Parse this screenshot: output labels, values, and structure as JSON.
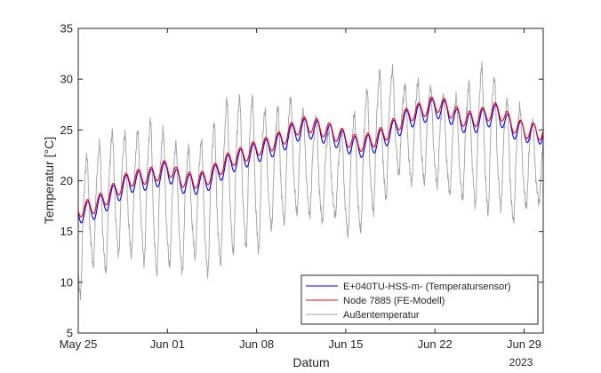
{
  "chart_data": {
    "type": "line",
    "title": "",
    "xlabel": "Datum",
    "ylabel": "Temperatur [°C]",
    "year_label": "2023",
    "xlim": [
      "2023-05-25",
      "2023-06-30T12:00"
    ],
    "ylim": [
      5,
      35
    ],
    "yticks": [
      5,
      10,
      15,
      20,
      25,
      30,
      35
    ],
    "xticks": [
      {
        "date": "2023-05-25",
        "label": "May 25"
      },
      {
        "date": "2023-06-01",
        "label": "Jun 01"
      },
      {
        "date": "2023-06-08",
        "label": "Jun 08"
      },
      {
        "date": "2023-06-15",
        "label": "Jun 15"
      },
      {
        "date": "2023-06-22",
        "label": "Jun 22"
      },
      {
        "date": "2023-06-29",
        "label": "Jun 29"
      }
    ],
    "grid": false,
    "legend_position": "bottom-right",
    "series": [
      {
        "name": "E+040TU-HSS-m- (Temperatursensor)",
        "color": "#0000ff",
        "daily_base": [
          16.8,
          17.0,
          17.8,
          18.8,
          19.8,
          20.0,
          20.2,
          21.0,
          19.8,
          19.6,
          19.8,
          20.8,
          21.8,
          22.2,
          22.8,
          23.2,
          23.8,
          24.8,
          25.2,
          24.8,
          24.4,
          23.8,
          23.2,
          23.6,
          24.2,
          25.2,
          26.2,
          26.6,
          27.2,
          26.8,
          25.8,
          25.6,
          26.2,
          26.6,
          25.2,
          24.8,
          24.6
        ],
        "daily_amplitude": 1.0
      },
      {
        "name": "Node 7885 (FE-Modell)",
        "color": "#ff0000",
        "daily_base": [
          17.2,
          17.4,
          18.2,
          19.2,
          20.2,
          20.4,
          20.6,
          21.4,
          20.2,
          20.0,
          20.2,
          21.2,
          22.2,
          22.6,
          23.2,
          23.6,
          24.2,
          25.2,
          25.6,
          25.2,
          24.8,
          24.2,
          23.6,
          24.0,
          24.6,
          25.6,
          26.6,
          27.0,
          27.6,
          27.2,
          26.2,
          26.0,
          26.6,
          27.0,
          25.6,
          25.0,
          24.8
        ],
        "daily_amplitude": 0.8
      },
      {
        "name": "Außentemperatur",
        "color": "#a0a0a0",
        "daily_min": [
          8.5,
          12.0,
          11.0,
          13.0,
          13.0,
          12.5,
          11.0,
          12.0,
          11.0,
          13.0,
          11.0,
          12.0,
          13.0,
          14.0,
          13.0,
          15.5,
          16.0,
          17.0,
          17.0,
          16.0,
          17.0,
          15.0,
          15.0,
          17.0,
          18.0,
          21.0,
          20.0,
          20.0,
          20.0,
          19.0,
          18.5,
          18.0,
          17.0,
          18.0,
          16.0,
          17.5,
          18.0
        ],
        "daily_max": [
          20.5,
          23.0,
          23.5,
          25.0,
          24.0,
          25.0,
          26.0,
          24.0,
          23.0,
          23.0,
          24.0,
          26.0,
          28.5,
          27.5,
          28.0,
          26.0,
          27.5,
          28.0,
          26.0,
          26.0,
          24.0,
          25.0,
          27.0,
          29.5,
          31.0,
          30.5,
          28.5,
          30.0,
          28.5,
          28.0,
          28.0,
          30.0,
          31.5,
          29.0,
          27.0,
          27.0,
          25.0
        ]
      }
    ]
  }
}
